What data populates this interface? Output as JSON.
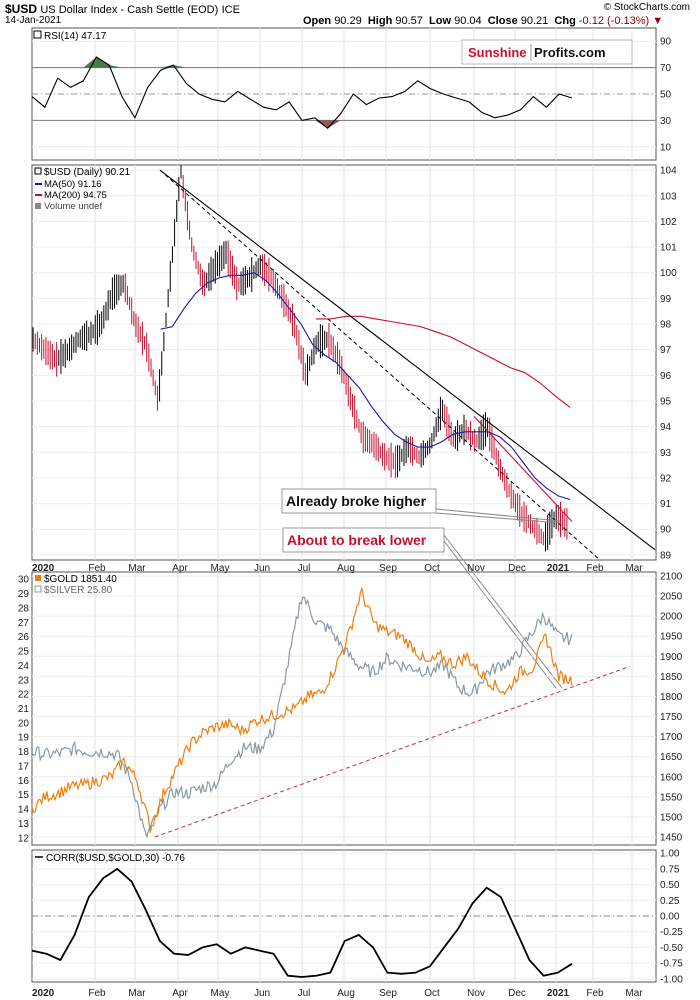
{
  "header": {
    "symbol": "$USD",
    "name": "US Dollar Index - Cash Settle (EOD)",
    "exchange": "ICE",
    "date": "14-Jan-2021",
    "open_label": "Open",
    "open": "90.29",
    "high_label": "High",
    "high": "90.57",
    "low_label": "Low",
    "low": "90.04",
    "close_label": "Close",
    "close": "90.21",
    "chg_label": "Chg",
    "chg": "-0.12 (-0.13%)",
    "watermark": "© StockCharts.com"
  },
  "logo": {
    "part1": "Sunshine",
    "part2": "Profits.com",
    "color1": "#c8102e"
  },
  "colors": {
    "usd": "#000000",
    "ma50": "#1a1aa6",
    "ma200": "#c8102e",
    "gold": "#f07d10",
    "silver": "#8a9aa4",
    "rsi_ob": "#4a7a4a",
    "rsi_os": "#8b5a52",
    "annot_red": "#c8102e",
    "support": "#d43a5a"
  },
  "x_axis_labels": [
    "2020",
    "Feb",
    "Mar",
    "Apr",
    "May",
    "Jun",
    "Jul",
    "Aug",
    "Sep",
    "Oct",
    "Nov",
    "Dec",
    "2021",
    "Feb",
    "Mar"
  ],
  "chart_data": [
    {
      "type": "line",
      "panel": "rsi",
      "legend": "RSI(14) 47.17",
      "yticks": [
        10,
        30,
        50,
        70,
        90
      ],
      "ylim": [
        0,
        100
      ],
      "series": [
        {
          "name": "RSI(14)",
          "values": [
            48,
            40,
            62,
            55,
            60,
            78,
            72,
            48,
            32,
            55,
            68,
            72,
            58,
            50,
            46,
            44,
            52,
            46,
            40,
            38,
            44,
            30,
            32,
            24,
            35,
            50,
            42,
            47,
            48,
            52,
            60,
            54,
            50,
            47,
            44,
            36,
            32,
            34,
            38,
            48,
            40,
            50,
            47
          ]
        }
      ]
    },
    {
      "type": "line",
      "panel": "usd",
      "legend": [
        "$USD (Daily) 90.21",
        "MA(50) 91.16",
        "MA(200) 94.75",
        "Volume undef"
      ],
      "yticks": [
        89,
        90,
        91,
        92,
        93,
        94,
        95,
        96,
        97,
        98,
        99,
        100,
        101,
        102,
        103,
        104
      ],
      "ylim": [
        88.8,
        104.2
      ],
      "series": [
        {
          "name": "$USD",
          "values": [
            97.4,
            97.0,
            96.6,
            96.9,
            97.4,
            97.6,
            98.0,
            99.2,
            99.6,
            98.0,
            97.1,
            95.0,
            99.5,
            104.0,
            101.0,
            99.5,
            100.2,
            100.8,
            99.5,
            99.8,
            100.3,
            99.8,
            99.0,
            98.0,
            96.0,
            97.3,
            97.4,
            96.5,
            95.0,
            93.6,
            93.3,
            92.8,
            92.6,
            93.2,
            92.8,
            93.3,
            94.7,
            93.5,
            93.9,
            93.4,
            94.0,
            92.5,
            91.4,
            90.6,
            90.1,
            89.6,
            90.5,
            90.21
          ]
        },
        {
          "name": "MA(50)",
          "values": [
            null,
            null,
            null,
            null,
            null,
            null,
            null,
            null,
            null,
            null,
            null,
            97.8,
            97.9,
            98.6,
            99.2,
            99.6,
            99.8,
            99.9,
            99.9,
            100.0,
            99.7,
            99.2,
            98.6,
            98.0,
            97.2,
            96.8,
            96.5,
            96.0,
            95.5,
            94.8,
            94.2,
            93.7,
            93.4,
            93.2,
            93.2,
            93.4,
            93.7,
            93.8,
            93.8,
            93.8,
            93.6,
            93.2,
            92.6,
            92.0,
            91.6,
            91.3,
            91.16
          ]
        },
        {
          "name": "MA(200)",
          "values": [
            null,
            null,
            null,
            null,
            null,
            null,
            null,
            null,
            null,
            null,
            null,
            null,
            null,
            null,
            null,
            null,
            null,
            null,
            null,
            98.2,
            98.2,
            98.3,
            98.3,
            98.2,
            98.1,
            98.0,
            97.9,
            97.7,
            97.5,
            97.2,
            96.9,
            96.6,
            96.3,
            96.1,
            95.7,
            95.2,
            94.75
          ]
        }
      ],
      "annotations": [
        "Already broke higher",
        "About to break lower"
      ]
    },
    {
      "type": "line",
      "panel": "gold_silver",
      "legend": [
        "$GOLD 1851.40",
        "$SILVER 25.80"
      ],
      "yticks_left": [
        12,
        13,
        14,
        15,
        16,
        17,
        18,
        19,
        20,
        21,
        22,
        23,
        24,
        25,
        26,
        27,
        28,
        29,
        30
      ],
      "yticks_right": [
        1450,
        1500,
        1550,
        1600,
        1650,
        1700,
        1750,
        1800,
        1850,
        1900,
        1950,
        2000,
        2050,
        2100
      ],
      "ylim_left": [
        11.5,
        30.5
      ],
      "ylim_right": [
        1430,
        2110
      ],
      "series": [
        {
          "name": "$GOLD",
          "axis": "right",
          "values": [
            1520,
            1550,
            1560,
            1575,
            1580,
            1590,
            1600,
            1640,
            1590,
            1470,
            1560,
            1620,
            1680,
            1710,
            1725,
            1730,
            1715,
            1740,
            1750,
            1760,
            1770,
            1800,
            1810,
            1870,
            1950,
            2060,
            1980,
            1960,
            1950,
            1920,
            1880,
            1900,
            1880,
            1900,
            1860,
            1830,
            1810,
            1860,
            1870,
            1950,
            1850,
            1840
          ]
        },
        {
          "name": "$SILVER",
          "axis": "left",
          "values": [
            18,
            17.8,
            17.9,
            18.2,
            18,
            18,
            17.8,
            16,
            12,
            14,
            15.2,
            15.1,
            15.5,
            15.8,
            17.5,
            18.3,
            18.2,
            19.5,
            24,
            29,
            27,
            26.5,
            25,
            24,
            23.5,
            24.5,
            24,
            23.8,
            23.5,
            24,
            22.5,
            22,
            23.5,
            24,
            24.5,
            26,
            27.5,
            26,
            25.8
          ]
        }
      ],
      "annotations": []
    },
    {
      "type": "line",
      "panel": "corr",
      "legend": "CORR($USD,$GOLD,30) -0.76",
      "yticks": [
        -1.0,
        -0.75,
        -0.5,
        -0.25,
        0.0,
        0.25,
        0.5,
        0.75,
        1.0
      ],
      "ylim": [
        -1.05,
        1.05
      ],
      "series": [
        {
          "name": "CORR($USD,$GOLD,30)",
          "values": [
            -0.55,
            -0.6,
            -0.7,
            -0.3,
            0.3,
            0.6,
            0.75,
            0.55,
            0.1,
            -0.4,
            -0.6,
            -0.62,
            -0.5,
            -0.45,
            -0.6,
            -0.5,
            -0.55,
            -0.6,
            -0.95,
            -0.97,
            -0.95,
            -0.9,
            -0.4,
            -0.3,
            -0.5,
            -0.9,
            -0.92,
            -0.9,
            -0.8,
            -0.5,
            -0.2,
            0.2,
            0.45,
            0.3,
            -0.2,
            -0.7,
            -0.95,
            -0.9,
            -0.76
          ]
        }
      ]
    }
  ]
}
